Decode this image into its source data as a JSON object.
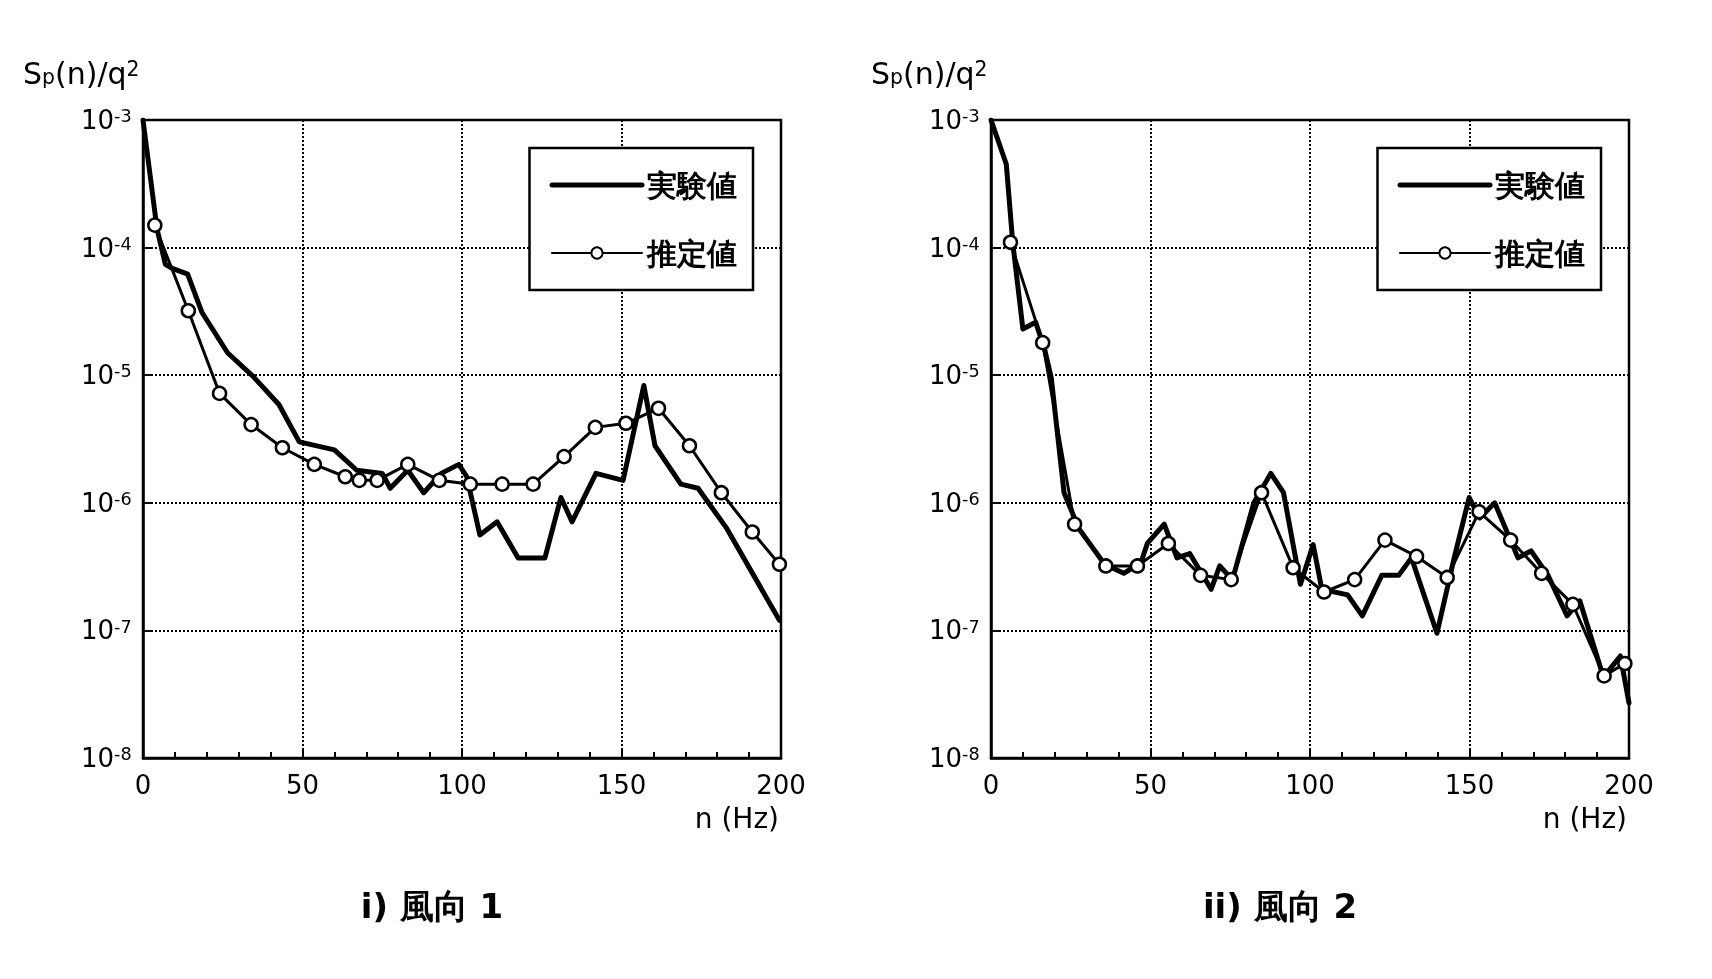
{
  "chart_data": [
    {
      "type": "line",
      "title": "i) 風向 1",
      "xlabel": "n (Hz)",
      "ylabel": "S$_{p}$(n)/q$^{2}$",
      "log": "y",
      "grid": true,
      "legend": "top right",
      "line_style": "solid",
      "xlim": [
        0,
        200
      ],
      "xticks": [
        0,
        50,
        100,
        150,
        200
      ],
      "ylim": [
        1e-08,
        0.001
      ],
      "yticks": [
        {
          "value": 1e-08,
          "label": "10$^{-8}$"
        },
        {
          "value": 1e-07,
          "label": "10$^{-7}$"
        },
        {
          "value": 1e-06,
          "label": "10$^{-6}$"
        },
        {
          "value": 1e-05,
          "label": "10$^{-5}$"
        },
        {
          "value": 0.0001,
          "label": "10$^{-4}$"
        },
        {
          "value": 0.001,
          "label": "10$^{-3}$"
        }
      ],
      "series": [
        {
          "name": "実験値",
          "color": "#000000",
          "marker": "none",
          "x": [
            0,
            4.4,
            7,
            9,
            14,
            18.5,
            26.5,
            34.5,
            42.6,
            49,
            60,
            67,
            75,
            77.5,
            83,
            88,
            93.5,
            99,
            101.5,
            105.6,
            111,
            117.6,
            126,
            131,
            134.5,
            142,
            150.5,
            157,
            160.5,
            168.6,
            174,
            183,
            199.5
          ],
          "values": [
            0.001,
            0.00014,
            7.4e-05,
            6.9e-05,
            6.2e-05,
            3.1e-05,
            1.5e-05,
            9.8e-06,
            5.9e-06,
            3e-06,
            2.6e-06,
            1.8e-06,
            1.7e-06,
            1.3e-06,
            1.8e-06,
            1.2e-06,
            1.7e-06,
            2e-06,
            1.6e-06,
            5.6e-07,
            7.1e-07,
            3.7e-07,
            3.7e-07,
            1.1e-06,
            7.1e-07,
            1.7e-06,
            1.5e-06,
            8.3e-06,
            2.8e-06,
            1.4e-06,
            1.3e-06,
            6.3e-07,
            1.2e-07
          ]
        },
        {
          "name": "推定値",
          "color": "#000000",
          "marker": "circle",
          "x": [
            3.7,
            14.2,
            24,
            33.9,
            43.7,
            53.7,
            63.4,
            67.8,
            73.4,
            83,
            92.9,
            102.6,
            112.6,
            122.3,
            132,
            141.8,
            151.4,
            161.6,
            171.3,
            181.3,
            191,
            199.5
          ],
          "values": [
            0.00015,
            3.2e-05,
            7.2e-06,
            4.1e-06,
            2.7e-06,
            2e-06,
            1.6e-06,
            1.5e-06,
            1.5e-06,
            2e-06,
            1.5e-06,
            1.4e-06,
            1.4e-06,
            1.4e-06,
            2.3e-06,
            3.9e-06,
            4.2e-06,
            5.5e-06,
            2.8e-06,
            1.2e-06,
            5.9e-07,
            3.3e-07
          ]
        }
      ]
    },
    {
      "type": "line",
      "title": "ii) 風向 2",
      "xlabel": "n (Hz)",
      "ylabel": "S$_{p}$(n)/q$^{2}$",
      "log": "y",
      "grid": true,
      "legend": "top right",
      "line_style": "solid",
      "xlim": [
        0,
        200
      ],
      "xticks": [
        0,
        50,
        100,
        150,
        200
      ],
      "ylim": [
        1e-08,
        0.001
      ],
      "yticks": [
        {
          "value": 1e-08,
          "label": "10$^{-8}$"
        },
        {
          "value": 1e-07,
          "label": "10$^{-7}$"
        },
        {
          "value": 1e-06,
          "label": "10$^{-6}$"
        },
        {
          "value": 1e-05,
          "label": "10$^{-5}$"
        },
        {
          "value": 0.0001,
          "label": "10$^{-4}$"
        },
        {
          "value": 0.001,
          "label": "10$^{-3}$"
        }
      ],
      "series": [
        {
          "name": "実験値",
          "color": "#000000",
          "marker": "none",
          "x": [
            0,
            4.8,
            6.8,
            10,
            14,
            16.8,
            18.9,
            21,
            22.9,
            27.5,
            35.6,
            41.6,
            47,
            49,
            54.3,
            58.3,
            62.3,
            69,
            71.7,
            75.7,
            82.4,
            87.7,
            91.7,
            97,
            101,
            103.7,
            111.8,
            116.4,
            122.5,
            127.8,
            131.8,
            139.8,
            145.2,
            149.9,
            153.2,
            157.9,
            165.2,
            169.3,
            174.6,
            180.6,
            184.6,
            192,
            197.3,
            200
          ],
          "values": [
            0.001,
            0.00045,
            0.00011,
            2.3e-05,
            2.6e-05,
            1.6e-05,
            9.5e-06,
            3.2e-06,
            1.2e-06,
            6.3e-07,
            3.3e-07,
            2.8e-07,
            3.4e-07,
            4.8e-07,
            6.8e-07,
            3.7e-07,
            4e-07,
            2.1e-07,
            3.2e-07,
            2.5e-07,
            1e-06,
            1.7e-06,
            1.2e-06,
            2.3e-07,
            4.7e-07,
            2.1e-07,
            1.9e-07,
            1.3e-07,
            2.7e-07,
            2.7e-07,
            3.7e-07,
            9.5e-08,
            3.7e-07,
            1.1e-06,
            7.6e-07,
            1e-06,
            3.7e-07,
            4.2e-07,
            2.7e-07,
            1.3e-07,
            1.7e-07,
            4.3e-08,
            6.3e-08,
            2.7e-08
          ]
        },
        {
          "name": "推定値",
          "color": "#000000",
          "marker": "circle",
          "x": [
            6.1,
            16.2,
            26.2,
            36,
            45.9,
            55.6,
            65.7,
            75.3,
            84.8,
            94.7,
            104.4,
            114,
            123.5,
            133.4,
            143,
            153,
            162.9,
            172.6,
            182.4,
            192.2,
            198.7
          ],
          "values": [
            0.00011,
            1.8e-05,
            6.8e-07,
            3.2e-07,
            3.2e-07,
            4.8e-07,
            2.7e-07,
            2.5e-07,
            1.2e-06,
            3.1e-07,
            2e-07,
            2.5e-07,
            5.1e-07,
            3.8e-07,
            2.6e-07,
            8.5e-07,
            5.1e-07,
            2.8e-07,
            1.6e-07,
            4.4e-08,
            5.5e-08
          ]
        }
      ]
    }
  ]
}
